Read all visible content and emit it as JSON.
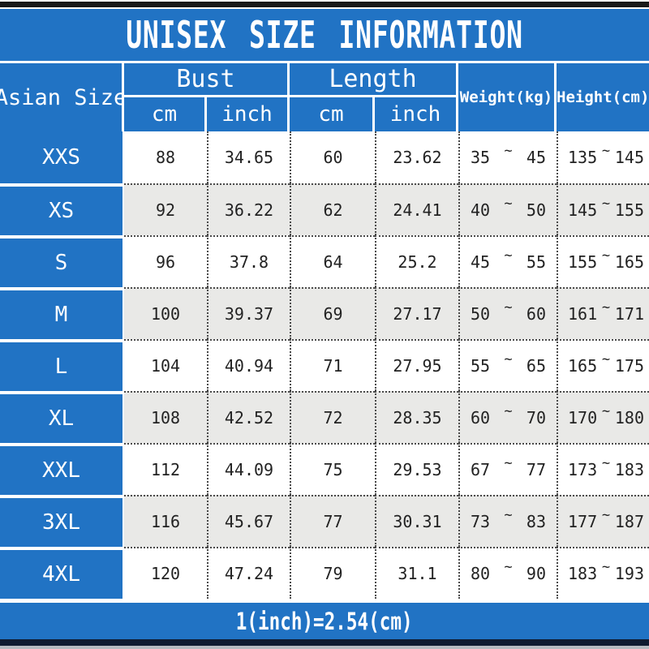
{
  "title": "UNISEX SIZE INFORMATION",
  "footer": "1(inch)=2.54(cm)",
  "tilde": "~",
  "columns": {
    "asian_size": "Asian Size",
    "bust": "Bust",
    "length": "Length",
    "cm": "cm",
    "inch": "inch",
    "weight": "Weight(kg)",
    "height": "Height(cm)"
  },
  "colors": {
    "blue": "#2173c4",
    "row_alt": "#e9e9e7",
    "text_dark": "#222222",
    "top_bar": "#191919",
    "bottom_bar": "#101b30",
    "bottom_strip": "#b6bac0"
  },
  "rows": [
    {
      "size": "XXS",
      "bust_cm": "88",
      "bust_inch": "34.65",
      "length_cm": "60",
      "length_inch": "23.62",
      "weight_min": "35",
      "weight_max": "45",
      "height_min": "135",
      "height_max": "145"
    },
    {
      "size": "XS",
      "bust_cm": "92",
      "bust_inch": "36.22",
      "length_cm": "62",
      "length_inch": "24.41",
      "weight_min": "40",
      "weight_max": "50",
      "height_min": "145",
      "height_max": "155"
    },
    {
      "size": "S",
      "bust_cm": "96",
      "bust_inch": "37.8",
      "length_cm": "64",
      "length_inch": "25.2",
      "weight_min": "45",
      "weight_max": "55",
      "height_min": "155",
      "height_max": "165"
    },
    {
      "size": "M",
      "bust_cm": "100",
      "bust_inch": "39.37",
      "length_cm": "69",
      "length_inch": "27.17",
      "weight_min": "50",
      "weight_max": "60",
      "height_min": "161",
      "height_max": "171"
    },
    {
      "size": "L",
      "bust_cm": "104",
      "bust_inch": "40.94",
      "length_cm": "71",
      "length_inch": "27.95",
      "weight_min": "55",
      "weight_max": "65",
      "height_min": "165",
      "height_max": "175"
    },
    {
      "size": "XL",
      "bust_cm": "108",
      "bust_inch": "42.52",
      "length_cm": "72",
      "length_inch": "28.35",
      "weight_min": "60",
      "weight_max": "70",
      "height_min": "170",
      "height_max": "180"
    },
    {
      "size": "XXL",
      "bust_cm": "112",
      "bust_inch": "44.09",
      "length_cm": "75",
      "length_inch": "29.53",
      "weight_min": "67",
      "weight_max": "77",
      "height_min": "173",
      "height_max": "183"
    },
    {
      "size": "3XL",
      "bust_cm": "116",
      "bust_inch": "45.67",
      "length_cm": "77",
      "length_inch": "30.31",
      "weight_min": "73",
      "weight_max": "83",
      "height_min": "177",
      "height_max": "187"
    },
    {
      "size": "4XL",
      "bust_cm": "120",
      "bust_inch": "47.24",
      "length_cm": "79",
      "length_inch": "31.1",
      "weight_min": "80",
      "weight_max": "90",
      "height_min": "183",
      "height_max": "193"
    }
  ],
  "chart_data": {
    "type": "table",
    "title": "UNISEX SIZE INFORMATION",
    "columns": [
      "Asian Size",
      "Bust cm",
      "Bust inch",
      "Length cm",
      "Length inch",
      "Weight(kg) min",
      "Weight(kg) max",
      "Height(cm) min",
      "Height(cm) max"
    ],
    "rows": [
      [
        "XXS",
        88,
        34.65,
        60,
        23.62,
        35,
        45,
        135,
        145
      ],
      [
        "XS",
        92,
        36.22,
        62,
        24.41,
        40,
        50,
        145,
        155
      ],
      [
        "S",
        96,
        37.8,
        64,
        25.2,
        45,
        55,
        155,
        165
      ],
      [
        "M",
        100,
        39.37,
        69,
        27.17,
        50,
        60,
        161,
        171
      ],
      [
        "L",
        104,
        40.94,
        71,
        27.95,
        55,
        65,
        165,
        175
      ],
      [
        "XL",
        108,
        42.52,
        72,
        28.35,
        60,
        70,
        170,
        180
      ],
      [
        "XXL",
        112,
        44.09,
        75,
        29.53,
        67,
        77,
        173,
        183
      ],
      [
        "3XL",
        116,
        45.67,
        77,
        30.31,
        73,
        83,
        177,
        187
      ],
      [
        "4XL",
        120,
        47.24,
        79,
        31.1,
        80,
        90,
        183,
        193
      ]
    ],
    "footnote": "1(inch)=2.54(cm)"
  }
}
